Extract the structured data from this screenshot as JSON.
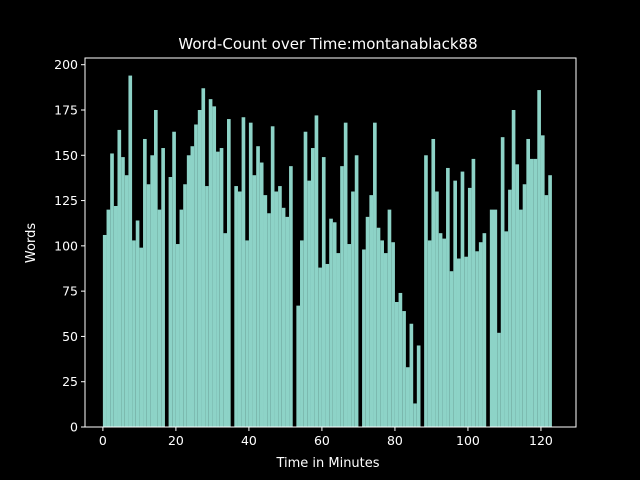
{
  "chart_data": {
    "type": "bar",
    "title": "Word-Count over Time:montanablack88",
    "xlabel": "Time in Minutes",
    "ylabel": "Words",
    "color": "#8dd3c7",
    "x": [
      0,
      1,
      2,
      3,
      4,
      5,
      6,
      7,
      8,
      9,
      10,
      11,
      12,
      13,
      14,
      15,
      16,
      17,
      18,
      19,
      20,
      21,
      22,
      23,
      24,
      25,
      26,
      27,
      28,
      29,
      30,
      31,
      32,
      33,
      34,
      35,
      36,
      37,
      38,
      39,
      40,
      41,
      42,
      43,
      44,
      45,
      46,
      47,
      48,
      49,
      50,
      51,
      52,
      53,
      54,
      55,
      56,
      57,
      58,
      59,
      60,
      61,
      62,
      63,
      64,
      65,
      66,
      67,
      68,
      69,
      70,
      71,
      72,
      73,
      74,
      75,
      76,
      77,
      78,
      79,
      80,
      81,
      82,
      83,
      84,
      85,
      86,
      87,
      88,
      89,
      90,
      91,
      92,
      93,
      94,
      95,
      96,
      97,
      98,
      99,
      100,
      101,
      102,
      103,
      104,
      105,
      106,
      107,
      108,
      109,
      110,
      111,
      112,
      113,
      114,
      115,
      116,
      117,
      118,
      119,
      120,
      121,
      122
    ],
    "values": [
      106,
      120,
      151,
      122,
      164,
      149,
      139,
      194,
      103,
      114,
      99,
      159,
      134,
      150,
      175,
      120,
      154,
      0,
      138,
      163,
      101,
      120,
      134,
      150,
      155,
      167,
      175,
      187,
      133,
      181,
      177,
      152,
      154,
      107,
      170,
      0,
      133,
      130,
      171,
      103,
      168,
      139,
      155,
      146,
      128,
      118,
      166,
      130,
      133,
      121,
      116,
      144,
      0,
      67,
      103,
      163,
      136,
      154,
      172,
      88,
      149,
      90,
      115,
      113,
      96,
      144,
      168,
      101,
      130,
      150,
      0,
      98,
      116,
      128,
      168,
      110,
      103,
      96,
      120,
      102,
      69,
      74,
      64,
      33,
      57,
      13,
      45,
      0,
      150,
      103,
      159,
      130,
      107,
      104,
      143,
      86,
      136,
      93,
      141,
      94,
      132,
      148,
      97,
      102,
      107,
      0,
      120,
      120,
      52,
      160,
      108,
      131,
      175,
      145,
      120,
      134,
      159,
      148,
      148,
      186,
      161,
      128,
      139
    ],
    "xlim": [
      -4.9,
      129.6
    ],
    "ylim": [
      0,
      203.7
    ],
    "xticks": [
      0,
      20,
      40,
      60,
      80,
      100,
      120
    ],
    "yticks": [
      0,
      25,
      50,
      75,
      100,
      125,
      150,
      175,
      200
    ]
  }
}
